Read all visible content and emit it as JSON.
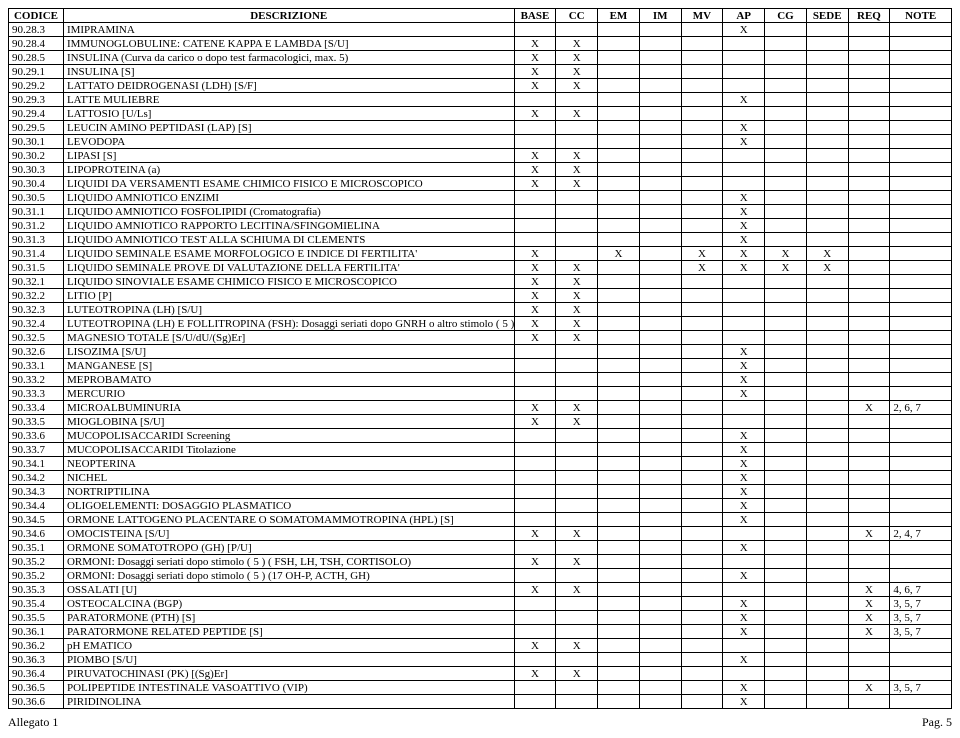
{
  "headers": [
    "CODICE",
    "DESCRIZIONE",
    "BASE",
    "CC",
    "EM",
    "IM",
    "MV",
    "AP",
    "CG",
    "SEDE",
    "REQ",
    "NOTE"
  ],
  "mark": "X",
  "rows": [
    {
      "code": "90.28.3",
      "desc": "IMIPRAMINA",
      "m": [
        0,
        0,
        0,
        0,
        0,
        1,
        0,
        0,
        0
      ],
      "note": ""
    },
    {
      "code": "90.28.4",
      "desc": "IMMUNOGLOBULINE: CATENE KAPPA E LAMBDA [S/U]",
      "m": [
        1,
        1,
        0,
        0,
        0,
        0,
        0,
        0,
        0
      ],
      "note": ""
    },
    {
      "code": "90.28.5",
      "desc": "INSULINA (Curva da carico o dopo test farmacologici, max. 5)",
      "m": [
        1,
        1,
        0,
        0,
        0,
        0,
        0,
        0,
        0
      ],
      "note": ""
    },
    {
      "code": "90.29.1",
      "desc": "INSULINA [S]",
      "m": [
        1,
        1,
        0,
        0,
        0,
        0,
        0,
        0,
        0
      ],
      "note": ""
    },
    {
      "code": "90.29.2",
      "desc": "LATTATO DEIDROGENASI (LDH) [S/F]",
      "m": [
        1,
        1,
        0,
        0,
        0,
        0,
        0,
        0,
        0
      ],
      "note": ""
    },
    {
      "code": "90.29.3",
      "desc": "LATTE MULIEBRE",
      "m": [
        0,
        0,
        0,
        0,
        0,
        1,
        0,
        0,
        0
      ],
      "note": ""
    },
    {
      "code": "90.29.4",
      "desc": "LATTOSIO [U/Ls]",
      "m": [
        1,
        1,
        0,
        0,
        0,
        0,
        0,
        0,
        0
      ],
      "note": ""
    },
    {
      "code": "90.29.5",
      "desc": "LEUCIN AMINO PEPTIDASI (LAP) [S]",
      "m": [
        0,
        0,
        0,
        0,
        0,
        1,
        0,
        0,
        0
      ],
      "note": ""
    },
    {
      "code": "90.30.1",
      "desc": "LEVODOPA",
      "m": [
        0,
        0,
        0,
        0,
        0,
        1,
        0,
        0,
        0
      ],
      "note": ""
    },
    {
      "code": "90.30.2",
      "desc": "LIPASI [S]",
      "m": [
        1,
        1,
        0,
        0,
        0,
        0,
        0,
        0,
        0
      ],
      "note": ""
    },
    {
      "code": "90.30.3",
      "desc": "LIPOPROTEINA (a)",
      "m": [
        1,
        1,
        0,
        0,
        0,
        0,
        0,
        0,
        0
      ],
      "note": ""
    },
    {
      "code": "90.30.4",
      "desc": "LIQUIDI DA VERSAMENTI ESAME CHIMICO FISICO E MICROSCOPICO",
      "m": [
        1,
        1,
        0,
        0,
        0,
        0,
        0,
        0,
        0
      ],
      "note": ""
    },
    {
      "code": "90.30.5",
      "desc": "LIQUIDO AMNIOTICO ENZIMI",
      "m": [
        0,
        0,
        0,
        0,
        0,
        1,
        0,
        0,
        0
      ],
      "note": ""
    },
    {
      "code": "90.31.1",
      "desc": "LIQUIDO AMNIOTICO FOSFOLIPIDI (Cromatografia)",
      "m": [
        0,
        0,
        0,
        0,
        0,
        1,
        0,
        0,
        0
      ],
      "note": ""
    },
    {
      "code": "90.31.2",
      "desc": "LIQUIDO AMNIOTICO RAPPORTO LECITINA/SFINGOMIELINA",
      "m": [
        0,
        0,
        0,
        0,
        0,
        1,
        0,
        0,
        0
      ],
      "note": ""
    },
    {
      "code": "90.31.3",
      "desc": "LIQUIDO AMNIOTICO TEST ALLA SCHIUMA DI CLEMENTS",
      "m": [
        0,
        0,
        0,
        0,
        0,
        1,
        0,
        0,
        0
      ],
      "note": ""
    },
    {
      "code": "90.31.4",
      "desc": "LIQUIDO SEMINALE ESAME MORFOLOGICO E INDICE DI FERTILITA'",
      "m": [
        1,
        0,
        1,
        0,
        1,
        1,
        1,
        1,
        0
      ],
      "note": ""
    },
    {
      "code": "90.31.5",
      "desc": "LIQUIDO SEMINALE PROVE DI VALUTAZIONE DELLA FERTILITA'",
      "m": [
        1,
        1,
        0,
        0,
        1,
        1,
        1,
        1,
        0
      ],
      "note": ""
    },
    {
      "code": "90.32.1",
      "desc": "LIQUIDO SINOVIALE ESAME CHIMICO FISICO E MICROSCOPICO",
      "m": [
        1,
        1,
        0,
        0,
        0,
        0,
        0,
        0,
        0
      ],
      "note": ""
    },
    {
      "code": "90.32.2",
      "desc": "LITIO [P]",
      "m": [
        1,
        1,
        0,
        0,
        0,
        0,
        0,
        0,
        0
      ],
      "note": ""
    },
    {
      "code": "90.32.3",
      "desc": "LUTEOTROPINA (LH) [S/U]",
      "m": [
        1,
        1,
        0,
        0,
        0,
        0,
        0,
        0,
        0
      ],
      "note": ""
    },
    {
      "code": "90.32.4",
      "desc": "LUTEOTROPINA (LH) E FOLLITROPINA (FSH): Dosaggi seriati dopo GNRH o altro stimolo ( 5 )",
      "m": [
        1,
        1,
        0,
        0,
        0,
        0,
        0,
        0,
        0
      ],
      "note": ""
    },
    {
      "code": "90.32.5",
      "desc": "MAGNESIO TOTALE [S/U/dU/(Sg)Er]",
      "m": [
        1,
        1,
        0,
        0,
        0,
        0,
        0,
        0,
        0
      ],
      "note": ""
    },
    {
      "code": "90.32.6",
      "desc": "LISOZIMA [S/U]",
      "m": [
        0,
        0,
        0,
        0,
        0,
        1,
        0,
        0,
        0
      ],
      "note": ""
    },
    {
      "code": "90.33.1",
      "desc": "MANGANESE [S]",
      "m": [
        0,
        0,
        0,
        0,
        0,
        1,
        0,
        0,
        0
      ],
      "note": ""
    },
    {
      "code": "90.33.2",
      "desc": "MEPROBAMATO",
      "m": [
        0,
        0,
        0,
        0,
        0,
        1,
        0,
        0,
        0
      ],
      "note": ""
    },
    {
      "code": "90.33.3",
      "desc": "MERCURIO",
      "m": [
        0,
        0,
        0,
        0,
        0,
        1,
        0,
        0,
        0
      ],
      "note": ""
    },
    {
      "code": "90.33.4",
      "desc": "MICROALBUMINURIA",
      "m": [
        1,
        1,
        0,
        0,
        0,
        0,
        0,
        0,
        1
      ],
      "note": "2, 6, 7"
    },
    {
      "code": "90.33.5",
      "desc": "MIOGLOBINA [S/U]",
      "m": [
        1,
        1,
        0,
        0,
        0,
        0,
        0,
        0,
        0
      ],
      "note": ""
    },
    {
      "code": "90.33.6",
      "desc": "MUCOPOLISACCARIDI Screening",
      "m": [
        0,
        0,
        0,
        0,
        0,
        1,
        0,
        0,
        0
      ],
      "note": ""
    },
    {
      "code": "90.33.7",
      "desc": "MUCOPOLISACCARIDI Titolazione",
      "m": [
        0,
        0,
        0,
        0,
        0,
        1,
        0,
        0,
        0
      ],
      "note": ""
    },
    {
      "code": "90.34.1",
      "desc": "NEOPTERINA",
      "m": [
        0,
        0,
        0,
        0,
        0,
        1,
        0,
        0,
        0
      ],
      "note": ""
    },
    {
      "code": "90.34.2",
      "desc": "NICHEL",
      "m": [
        0,
        0,
        0,
        0,
        0,
        1,
        0,
        0,
        0
      ],
      "note": ""
    },
    {
      "code": "90.34.3",
      "desc": "NORTRIPTILINA",
      "m": [
        0,
        0,
        0,
        0,
        0,
        1,
        0,
        0,
        0
      ],
      "note": ""
    },
    {
      "code": "90.34.4",
      "desc": "OLIGOELEMENTI: DOSAGGIO PLASMATICO",
      "m": [
        0,
        0,
        0,
        0,
        0,
        1,
        0,
        0,
        0
      ],
      "note": ""
    },
    {
      "code": "90.34.5",
      "desc": "ORMONE LATTOGENO PLACENTARE O SOMATOMAMMOTROPINA (HPL) [S]",
      "m": [
        0,
        0,
        0,
        0,
        0,
        1,
        0,
        0,
        0
      ],
      "note": ""
    },
    {
      "code": "90.34.6",
      "desc": "OMOCISTEINA [S/U]",
      "m": [
        1,
        1,
        0,
        0,
        0,
        0,
        0,
        0,
        1
      ],
      "note": "2, 4, 7"
    },
    {
      "code": "90.35.1",
      "desc": "ORMONE SOMATOTROPO (GH) [P/U]",
      "m": [
        0,
        0,
        0,
        0,
        0,
        1,
        0,
        0,
        0
      ],
      "note": ""
    },
    {
      "code": "90.35.2",
      "desc": "ORMONI: Dosaggi seriati dopo stimolo ( 5 ) ( FSH,  LH, TSH, CORTISOLO)",
      "m": [
        1,
        1,
        0,
        0,
        0,
        0,
        0,
        0,
        0
      ],
      "note": ""
    },
    {
      "code": "90.35.2",
      "desc": "ORMONI: Dosaggi seriati dopo stimolo ( 5 ) (17 OH-P, ACTH, GH)",
      "m": [
        0,
        0,
        0,
        0,
        0,
        1,
        0,
        0,
        0
      ],
      "note": ""
    },
    {
      "code": "90.35.3",
      "desc": "OSSALATI [U]",
      "m": [
        1,
        1,
        0,
        0,
        0,
        0,
        0,
        0,
        1
      ],
      "note": "4, 6, 7"
    },
    {
      "code": "90.35.4",
      "desc": "OSTEOCALCINA (BGP)",
      "m": [
        0,
        0,
        0,
        0,
        0,
        1,
        0,
        0,
        1
      ],
      "note": "3, 5, 7"
    },
    {
      "code": "90.35.5",
      "desc": "PARATORMONE (PTH) [S]",
      "m": [
        0,
        0,
        0,
        0,
        0,
        1,
        0,
        0,
        1
      ],
      "note": "3, 5, 7"
    },
    {
      "code": "90.36.1",
      "desc": "PARATORMONE RELATED PEPTIDE [S]",
      "m": [
        0,
        0,
        0,
        0,
        0,
        1,
        0,
        0,
        1
      ],
      "note": "3, 5, 7"
    },
    {
      "code": "90.36.2",
      "desc": "pH EMATICO",
      "m": [
        1,
        1,
        0,
        0,
        0,
        0,
        0,
        0,
        0
      ],
      "note": ""
    },
    {
      "code": "90.36.3",
      "desc": "PIOMBO [S/U]",
      "m": [
        0,
        0,
        0,
        0,
        0,
        1,
        0,
        0,
        0
      ],
      "note": ""
    },
    {
      "code": "90.36.4",
      "desc": "PIRUVATOCHINASI (PK) [(Sg)Er]",
      "m": [
        1,
        1,
        0,
        0,
        0,
        0,
        0,
        0,
        0
      ],
      "note": ""
    },
    {
      "code": "90.36.5",
      "desc": "POLIPEPTIDE INTESTINALE VASOATTIVO (VIP)",
      "m": [
        0,
        0,
        0,
        0,
        0,
        1,
        0,
        0,
        1
      ],
      "note": "3, 5, 7"
    },
    {
      "code": "90.36.6",
      "desc": "PIRIDINOLINA",
      "m": [
        0,
        0,
        0,
        0,
        0,
        1,
        0,
        0,
        0
      ],
      "note": ""
    }
  ],
  "footer": {
    "left": "Allegato 1",
    "right": "Pag. 5"
  }
}
